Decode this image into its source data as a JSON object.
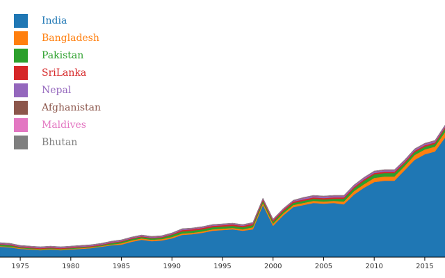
{
  "chart_data": {
    "type": "stacked-area",
    "x": [
      1973,
      1974,
      1975,
      1976,
      1977,
      1978,
      1979,
      1980,
      1981,
      1982,
      1983,
      1984,
      1985,
      1986,
      1987,
      1988,
      1989,
      1990,
      1991,
      1992,
      1993,
      1994,
      1995,
      1996,
      1997,
      1998,
      1999,
      2000,
      2001,
      2002,
      2003,
      2004,
      2005,
      2006,
      2007,
      2008,
      2009,
      2010,
      2011,
      2012,
      2013,
      2014,
      2015,
      2016,
      2017
    ],
    "xlim": [
      1973,
      2017
    ],
    "xticks": [
      1975,
      1980,
      1985,
      1990,
      1995,
      2000,
      2005,
      2010,
      2015
    ],
    "ylim": [
      0,
      360
    ],
    "legend": "top-left",
    "series": [
      {
        "name": "India",
        "color": "#1f77b4",
        "values": [
          15,
          14,
          12,
          11,
          10,
          11,
          10,
          11,
          12,
          13,
          15,
          17,
          18,
          22,
          25,
          23,
          24,
          27,
          32,
          33,
          35,
          38,
          39,
          40,
          38,
          40,
          75,
          45,
          60,
          72,
          75,
          78,
          77,
          78,
          76,
          90,
          100,
          108,
          110,
          110,
          125,
          140,
          148,
          152,
          172
        ]
      },
      {
        "name": "Bangladesh",
        "color": "#ff7f0e",
        "values": [
          1,
          1,
          1,
          1,
          1,
          1,
          1,
          1,
          1,
          1,
          1,
          1,
          2,
          2,
          2,
          2,
          2,
          2,
          2,
          2,
          2,
          2,
          2,
          2,
          2,
          3,
          3,
          3,
          3,
          3,
          3,
          3,
          3,
          3,
          4,
          5,
          5,
          6,
          6,
          6,
          6,
          7,
          7,
          7,
          8
        ]
      },
      {
        "name": "Pakistan",
        "color": "#2ca02c",
        "values": [
          2,
          2,
          1,
          1,
          1,
          1,
          1,
          1,
          1,
          1,
          1,
          2,
          2,
          2,
          2,
          2,
          2,
          3,
          3,
          3,
          3,
          3,
          3,
          3,
          3,
          3,
          3,
          3,
          3,
          3,
          3,
          3,
          3,
          3,
          4,
          4,
          5,
          5,
          5,
          5,
          4,
          4,
          4,
          4,
          5
        ]
      },
      {
        "name": "SriLanka",
        "color": "#d62728",
        "values": [
          1,
          1,
          1,
          1,
          1,
          1,
          1,
          1,
          1,
          1,
          1,
          1,
          1,
          1,
          1,
          1,
          1,
          1,
          2,
          2,
          2,
          2,
          2,
          2,
          2,
          2,
          2,
          2,
          2,
          2,
          2,
          2,
          2,
          2,
          2,
          2,
          2,
          2,
          2,
          2,
          2,
          2,
          2,
          2,
          2
        ]
      },
      {
        "name": "Nepal",
        "color": "#9467bd",
        "values": [
          1,
          1,
          1,
          1,
          1,
          1,
          1,
          1,
          1,
          1,
          1,
          1,
          1,
          1,
          1,
          1,
          1,
          1,
          1,
          1,
          1,
          1,
          1,
          1,
          1,
          1,
          1,
          1,
          1,
          1,
          2,
          2,
          2,
          2,
          2,
          2,
          2,
          2,
          2,
          2,
          2,
          2,
          2,
          2,
          2
        ]
      },
      {
        "name": "Afghanistan",
        "color": "#8c564b",
        "values": [
          0.5,
          0.5,
          0.5,
          0.5,
          0.5,
          0.5,
          0.5,
          0.5,
          0.5,
          0.5,
          0.5,
          0.5,
          0.5,
          0.5,
          0.5,
          0.5,
          0.5,
          0.5,
          0.5,
          0.5,
          0.5,
          0.5,
          0.5,
          0.5,
          0.5,
          0.5,
          0.5,
          0.5,
          0.5,
          0.5,
          0.5,
          0.5,
          0.5,
          0.5,
          0.5,
          0.5,
          0.5,
          0.5,
          0.5,
          0.5,
          0.5,
          0.5,
          0.5,
          0.5,
          0.5
        ]
      },
      {
        "name": "Maldives",
        "color": "#e377c2",
        "values": [
          0.3,
          0.3,
          0.3,
          0.3,
          0.3,
          0.3,
          0.3,
          0.3,
          0.3,
          0.3,
          0.3,
          0.3,
          0.3,
          0.3,
          0.3,
          0.3,
          0.3,
          0.3,
          0.3,
          0.3,
          0.3,
          0.3,
          0.3,
          0.3,
          0.3,
          0.3,
          0.3,
          0.3,
          0.3,
          0.3,
          0.3,
          0.3,
          0.3,
          0.3,
          0.3,
          0.3,
          0.3,
          0.3,
          0.3,
          0.3,
          0.3,
          0.3,
          0.3,
          0.3,
          0.3
        ]
      },
      {
        "name": "Bhutan",
        "color": "#7f7f7f",
        "values": [
          0.2,
          0.2,
          0.2,
          0.2,
          0.2,
          0.2,
          0.2,
          0.2,
          0.2,
          0.2,
          0.2,
          0.2,
          0.2,
          0.2,
          0.2,
          0.2,
          0.2,
          0.2,
          0.2,
          0.2,
          0.2,
          0.2,
          0.2,
          0.2,
          0.2,
          0.2,
          0.2,
          0.2,
          0.2,
          0.2,
          0.2,
          0.2,
          0.2,
          0.2,
          0.2,
          0.2,
          0.2,
          0.2,
          0.2,
          0.2,
          0.2,
          0.2,
          0.2,
          0.2,
          0.2
        ]
      }
    ]
  }
}
